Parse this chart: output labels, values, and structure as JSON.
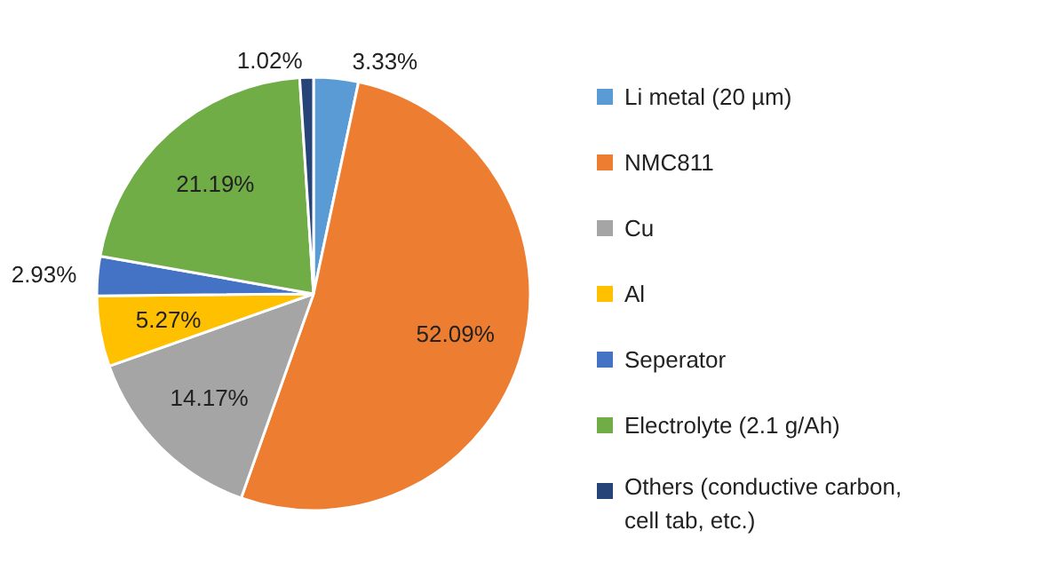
{
  "chart_data": {
    "type": "pie",
    "categories": [
      "Li metal (20 µm)",
      "NMC811",
      "Cu",
      "Al",
      "Seperator",
      "Electrolyte (2.1 g/Ah)",
      "Others (conductive carbon, cell tab, etc.)"
    ],
    "values": [
      3.33,
      52.09,
      14.17,
      5.27,
      2.93,
      21.19,
      1.02
    ],
    "colors": [
      "#5b9bd5",
      "#ed7d31",
      "#a5a5a5",
      "#ffc000",
      "#4472c4",
      "#70ad47",
      "#264478"
    ],
    "value_labels": [
      "3.33%",
      "52.09%",
      "14.17%",
      "5.27%",
      "2.93%",
      "21.19%",
      "1.02%"
    ],
    "legend": "right"
  }
}
